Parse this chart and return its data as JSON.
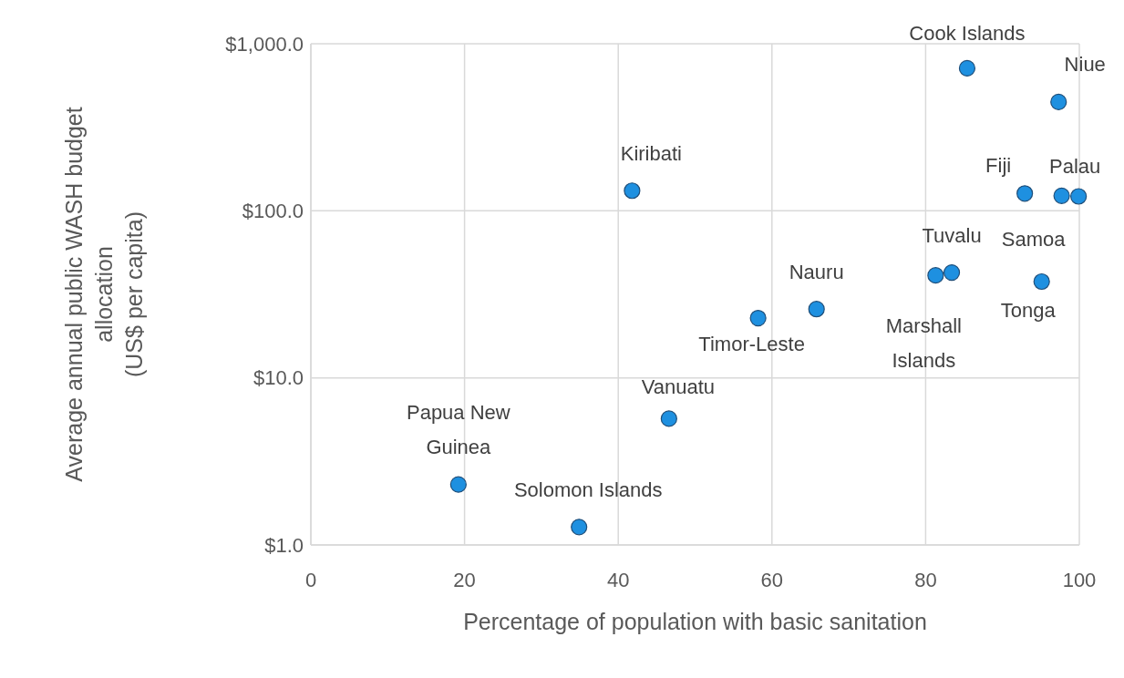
{
  "chart_data": {
    "type": "scatter",
    "xlabel": "Percentage of population with basic sanitation",
    "ylabel": "Average annual public WASH budget allocation (US$ per capita)",
    "xlim": [
      0,
      100
    ],
    "xticks": [
      0,
      20,
      40,
      60,
      80,
      100
    ],
    "ylim": [
      1,
      1000
    ],
    "yticks": [
      {
        "value": 1,
        "label": "$1.0"
      },
      {
        "value": 10,
        "label": "$10.0"
      },
      {
        "value": 100,
        "label": "$100.0"
      },
      {
        "value": 1000,
        "label": "$1,000.0"
      }
    ],
    "log": "y",
    "grid": true,
    "marker": "circle",
    "series": [
      {
        "color": "#1e90e0",
        "x": [
          85.4,
          97.3,
          41.8,
          92.9,
          99.9,
          97.7,
          95.1,
          83.4,
          81.3,
          65.8,
          58.2,
          46.6,
          19.2,
          34.9
        ],
        "values": [
          713,
          448,
          132,
          127,
          122,
          123,
          37.7,
          42.7,
          41.1,
          25.8,
          22.8,
          5.7,
          2.3,
          1.28
        ]
      }
    ],
    "annotations": [
      {
        "text": "Cook Islands",
        "x": 85.4,
        "y": 713
      },
      {
        "text": "Niue",
        "x": 97.3,
        "y": 448
      },
      {
        "text": "Kiribati",
        "x": 41.8,
        "y": 132
      },
      {
        "text": "Fiji",
        "x": 92.9,
        "y": 127
      },
      {
        "text": "Palau",
        "x": 99.9,
        "y": 122
      },
      {
        "text": "Samoa",
        "x": 97.7,
        "y": 123
      },
      {
        "text": "Tonga",
        "x": 95.1,
        "y": 37.7
      },
      {
        "text": "Tuvalu",
        "x": 83.4,
        "y": 42.7
      },
      {
        "text": "Marshall Islands",
        "x": 81.3,
        "y": 41.1
      },
      {
        "text": "Nauru",
        "x": 65.8,
        "y": 25.8
      },
      {
        "text": "Timor-Leste",
        "x": 58.2,
        "y": 22.8
      },
      {
        "text": "Vanuatu",
        "x": 46.6,
        "y": 5.7
      },
      {
        "text": "Papua New Guinea",
        "x": 19.2,
        "y": 2.3
      },
      {
        "text": "Solomon Islands",
        "x": 34.9,
        "y": 1.28
      }
    ]
  }
}
